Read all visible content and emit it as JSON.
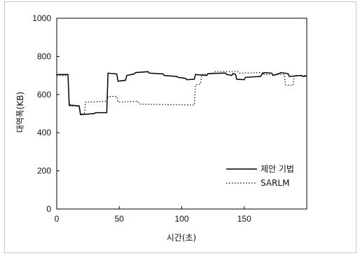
{
  "chart_data": {
    "type": "line",
    "xlabel": "시간(초)",
    "ylabel": "대역폭(KB)",
    "xlim": [
      0,
      200
    ],
    "ylim": [
      0,
      1000
    ],
    "xticks": [
      0,
      50,
      100,
      150
    ],
    "yticks": [
      0,
      200,
      400,
      600,
      800,
      1000
    ],
    "grid": false,
    "legend_position": "lower-right",
    "series": [
      {
        "name": "제안 기법",
        "style": "solid",
        "points": [
          [
            0,
            705
          ],
          [
            9,
            705
          ],
          [
            10,
            545
          ],
          [
            18,
            540
          ],
          [
            19,
            495
          ],
          [
            30,
            500
          ],
          [
            31,
            505
          ],
          [
            40,
            505
          ],
          [
            41,
            712
          ],
          [
            48,
            708
          ],
          [
            49,
            670
          ],
          [
            55,
            675
          ],
          [
            56,
            700
          ],
          [
            62,
            708
          ],
          [
            63,
            715
          ],
          [
            73,
            720
          ],
          [
            74,
            712
          ],
          [
            85,
            708
          ],
          [
            86,
            700
          ],
          [
            96,
            695
          ],
          [
            97,
            690
          ],
          [
            103,
            685
          ],
          [
            104,
            678
          ],
          [
            110,
            680
          ],
          [
            111,
            705
          ],
          [
            120,
            700
          ],
          [
            121,
            710
          ],
          [
            135,
            712
          ],
          [
            136,
            705
          ],
          [
            140,
            700
          ],
          [
            141,
            710
          ],
          [
            143,
            705
          ],
          [
            144,
            680
          ],
          [
            150,
            678
          ],
          [
            151,
            690
          ],
          [
            163,
            695
          ],
          [
            164,
            705
          ],
          [
            166,
            715
          ],
          [
            172,
            712
          ],
          [
            173,
            700
          ],
          [
            178,
            710
          ],
          [
            179,
            715
          ],
          [
            185,
            710
          ],
          [
            186,
            695
          ],
          [
            195,
            700
          ],
          [
            197,
            695
          ],
          [
            200,
            698
          ]
        ]
      },
      {
        "name": "SARLM",
        "style": "dotted",
        "points": [
          [
            0,
            700
          ],
          [
            9,
            700
          ],
          [
            10,
            540
          ],
          [
            18,
            540
          ],
          [
            19,
            495
          ],
          [
            22,
            500
          ],
          [
            23,
            560
          ],
          [
            40,
            565
          ],
          [
            41,
            590
          ],
          [
            48,
            590
          ],
          [
            49,
            560
          ],
          [
            65,
            565
          ],
          [
            66,
            550
          ],
          [
            110,
            545
          ],
          [
            111,
            650
          ],
          [
            115,
            655
          ],
          [
            116,
            705
          ],
          [
            125,
            710
          ],
          [
            126,
            720
          ],
          [
            145,
            720
          ],
          [
            146,
            712
          ],
          [
            165,
            715
          ],
          [
            166,
            705
          ],
          [
            182,
            705
          ],
          [
            183,
            650
          ],
          [
            189,
            648
          ],
          [
            190,
            700
          ],
          [
            200,
            700
          ]
        ]
      }
    ]
  }
}
